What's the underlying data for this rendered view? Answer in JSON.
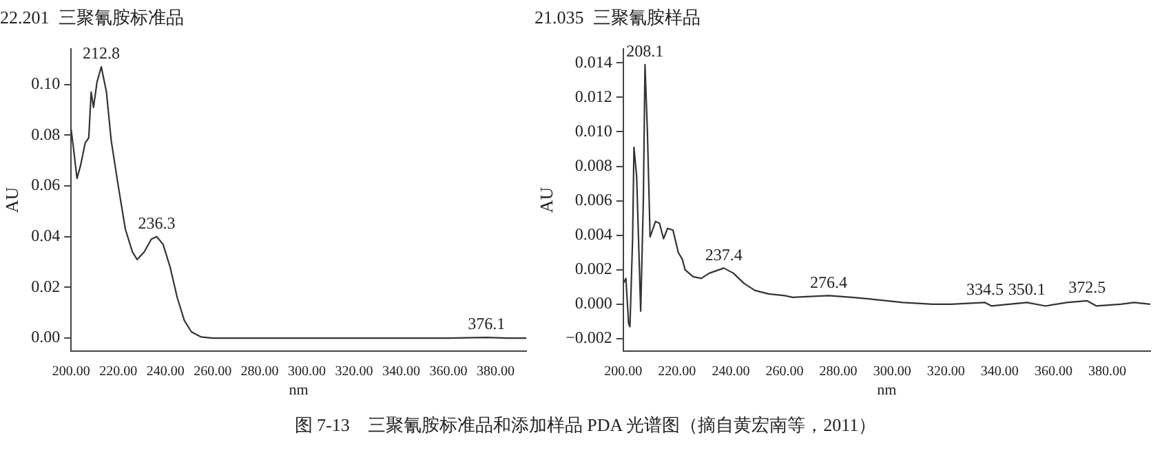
{
  "chart_data": [
    {
      "type": "line",
      "title": "22.201  三聚氰胺标准品",
      "xlabel": "nm",
      "ylabel": "AU",
      "x": [
        200,
        201,
        202.5,
        204,
        206,
        207.5,
        208.5,
        209.5,
        211,
        212.8,
        215,
        217,
        220,
        223,
        226,
        228,
        231,
        234,
        236.3,
        239,
        242,
        245,
        248,
        251,
        255,
        260,
        300,
        360,
        376.1,
        385,
        393
      ],
      "series": [
        {
          "color": "#333333",
          "values": [
            0.0824,
            0.075,
            0.063,
            0.068,
            0.077,
            0.079,
            0.097,
            0.091,
            0.101,
            0.107,
            0.097,
            0.078,
            0.06,
            0.043,
            0.034,
            0.031,
            0.034,
            0.039,
            0.04,
            0.037,
            0.028,
            0.016,
            0.007,
            0.0025,
            0.0005,
            0.0,
            0.0,
            0.0,
            0.0003,
            0.0,
            0.0
          ]
        }
      ],
      "xlim": [
        200,
        393
      ],
      "ylim": [
        -0.005,
        0.114
      ],
      "xticks": [
        {
          "value": 200,
          "label": "200.00"
        },
        {
          "value": 220,
          "label": "220.00"
        },
        {
          "value": 240,
          "label": "240.00"
        },
        {
          "value": 260,
          "label": "260.00"
        },
        {
          "value": 280,
          "label": "280.00"
        },
        {
          "value": 300,
          "label": "300.00"
        },
        {
          "value": 320,
          "label": "320.00"
        },
        {
          "value": 340,
          "label": "340.00"
        },
        {
          "value": 360,
          "label": "360.00"
        },
        {
          "value": 380,
          "label": "380.00"
        }
      ],
      "yticks": [
        {
          "value": 0,
          "label": "0.00"
        },
        {
          "value": 0.02,
          "label": "0.02"
        },
        {
          "value": 0.04,
          "label": "0.04"
        },
        {
          "value": 0.06,
          "label": "0.06"
        },
        {
          "value": 0.08,
          "label": "0.08"
        },
        {
          "value": 0.1,
          "label": "0.10"
        }
      ],
      "grid": false,
      "legend": false,
      "annotations": [
        {
          "text": "212.8",
          "x": 212.8,
          "y": 0.107
        },
        {
          "text": "236.3",
          "x": 236.3,
          "y": 0.04
        },
        {
          "text": "376.1",
          "x": 376.1,
          "y": 0.0003
        },
        "图 7-13　三聚氰胺标准品和添加样品 PDA 光谱图（摘自黄宏南等，2011）"
      ]
    },
    {
      "type": "line",
      "title": "21.035  三聚氰胺样品",
      "xlabel": "nm",
      "ylabel": "AU",
      "x": [
        200,
        201,
        202,
        202.5,
        203.5,
        204,
        205,
        206,
        206.5,
        207.5,
        208.1,
        209,
        210,
        212,
        213.5,
        215,
        216.5,
        218.5,
        220.5,
        222,
        223,
        226,
        229,
        232,
        237.4,
        241,
        245,
        249,
        254,
        260,
        263,
        276.4,
        285,
        292,
        298,
        304,
        315,
        322,
        334.5,
        337,
        350.1,
        357,
        365,
        372.5,
        376,
        385,
        390,
        396
      ],
      "series": [
        {
          "color": "#333333",
          "values": [
            0.0012,
            0.0015,
            -0.0011,
            -0.0013,
            0.0038,
            0.0091,
            0.0074,
            0.0022,
            -0.0004,
            0.0061,
            0.0139,
            0.01,
            0.0039,
            0.0048,
            0.0047,
            0.0038,
            0.0044,
            0.0043,
            0.003,
            0.0026,
            0.002,
            0.0016,
            0.0015,
            0.0018,
            0.0021,
            0.0018,
            0.0012,
            0.0008,
            0.0006,
            0.0005,
            0.0004,
            0.0005,
            0.0004,
            0.0003,
            0.0002,
            0.0001,
            0.0,
            0.0,
            0.0001,
            -0.0001,
            0.0001,
            -0.0001,
            0.0001,
            0.0002,
            -0.0001,
            0.0,
            0.0001,
            0.0
          ]
        }
      ],
      "xlim": [
        200,
        396
      ],
      "ylim": [
        -0.0027,
        0.0148
      ],
      "xticks": [
        {
          "value": 200,
          "label": "200.00"
        },
        {
          "value": 220,
          "label": "220.00"
        },
        {
          "value": 240,
          "label": "240.00"
        },
        {
          "value": 260,
          "label": "260.00"
        },
        {
          "value": 280,
          "label": "280.00"
        },
        {
          "value": 300,
          "label": "300.00"
        },
        {
          "value": 320,
          "label": "320.00"
        },
        {
          "value": 340,
          "label": "340.00"
        },
        {
          "value": 360,
          "label": "360.00"
        },
        {
          "value": 380,
          "label": "380.00"
        }
      ],
      "yticks": [
        {
          "value": -0.002,
          "label": "−0.002"
        },
        {
          "value": 0,
          "label": "0.000"
        },
        {
          "value": 0.002,
          "label": "0.002"
        },
        {
          "value": 0.004,
          "label": "0.004"
        },
        {
          "value": 0.006,
          "label": "0.006"
        },
        {
          "value": 0.008,
          "label": "0.008"
        },
        {
          "value": 0.01,
          "label": "0.010"
        },
        {
          "value": 0.012,
          "label": "0.012"
        },
        {
          "value": 0.014,
          "label": "0.014"
        }
      ],
      "grid": false,
      "legend": false,
      "annotations": [
        {
          "text": "208.1",
          "x": 208.1,
          "y": 0.0139
        },
        {
          "text": "237.4",
          "x": 237.4,
          "y": 0.0021
        },
        {
          "text": "276.4",
          "x": 276.4,
          "y": 0.0005
        },
        {
          "text": "334.5",
          "x": 334.5,
          "y": 0.0001
        },
        {
          "text": "350.1",
          "x": 350.1,
          "y": 0.0001
        },
        {
          "text": "372.5",
          "x": 372.5,
          "y": 0.0002
        }
      ]
    }
  ]
}
